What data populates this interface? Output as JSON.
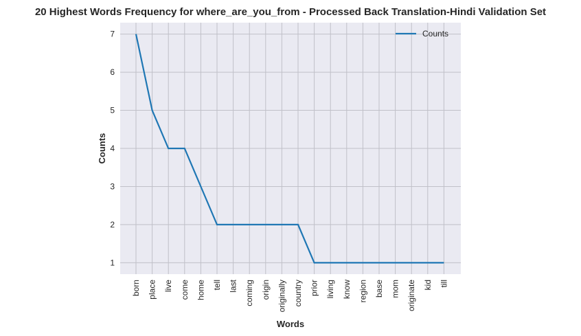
{
  "chart_data": {
    "type": "line",
    "title": "20 Highest Words Frequency for where_are_you_from - Processed Back Translation-Hindi Validation Set",
    "xlabel": "Words",
    "ylabel": "Counts",
    "categories": [
      "born",
      "place",
      "live",
      "come",
      "home",
      "tell",
      "last",
      "coming",
      "origin",
      "originally",
      "country",
      "prior",
      "living",
      "know",
      "region",
      "base",
      "mom",
      "originate",
      "kid",
      "till"
    ],
    "series": [
      {
        "name": "Counts",
        "values": [
          7,
          5,
          4,
          4,
          3,
          2,
          2,
          2,
          2,
          2,
          2,
          1,
          1,
          1,
          1,
          1,
          1,
          1,
          1,
          1
        ],
        "color": "#1f77b4"
      }
    ],
    "yticks": [
      1,
      2,
      3,
      4,
      5,
      6,
      7
    ],
    "ylim": [
      0.7,
      7.3
    ],
    "grid": true,
    "legend_position": "top-right",
    "colors": {
      "background": "#eaeaf2",
      "grid": "#c0c0c8"
    }
  }
}
